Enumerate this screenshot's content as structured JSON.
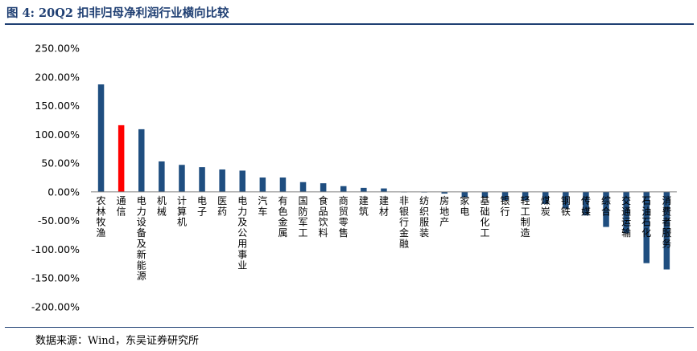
{
  "figure": {
    "title": "图 4:  20Q2 扣非归母净利润行业横向比较",
    "source": "数据来源：Wind，东吴证券研究所"
  },
  "colors": {
    "primary": "#1f4e80",
    "highlight": "#ff0000",
    "rule": "#1f3f73"
  },
  "chart_data": {
    "type": "bar",
    "categories": [
      "农林牧渔",
      "通信",
      "电力设备及新能源",
      "机械",
      "计算机",
      "电子",
      "医药",
      "电力及公用事业",
      "汽车",
      "有色金属",
      "国防军工",
      "食品饮料",
      "商贸零售",
      "建筑",
      "建材",
      "非银行金融",
      "纺织服装",
      "房地产",
      "家电",
      "基础化工",
      "银行",
      "轻工制造",
      "煤炭",
      "钢铁",
      "传媒",
      "综合",
      "交通运输",
      "石油石化",
      "消费者服务"
    ],
    "values": [
      187,
      116,
      109,
      53,
      47,
      43,
      39,
      37,
      25,
      25,
      17,
      15,
      10,
      7,
      6,
      0,
      -1,
      -3,
      -10,
      -10,
      -15,
      -15,
      -21,
      -29,
      -41,
      -61,
      -72,
      -124,
      -135
    ],
    "highlight_index": 1,
    "unit": "%",
    "ylim": [
      -200,
      250
    ],
    "yticks": [
      "250.00%",
      "200.00%",
      "150.00%",
      "100.00%",
      "50.00%",
      "0.00%",
      "-50.00%",
      "-100.00%",
      "-150.00%",
      "-200.00%"
    ],
    "grid": false,
    "legend": "none"
  }
}
